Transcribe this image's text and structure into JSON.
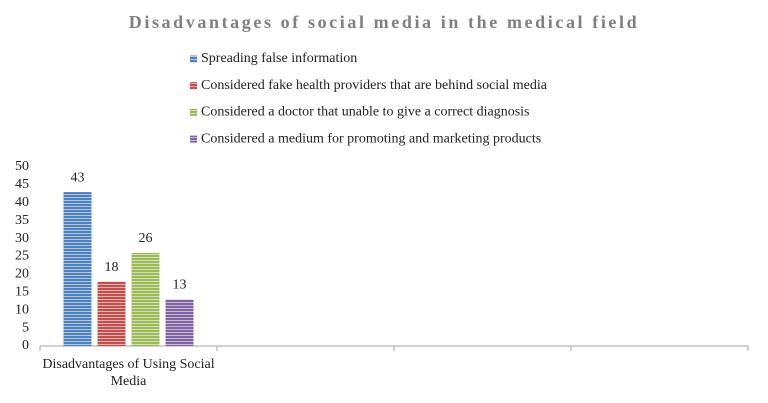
{
  "chart_data": {
    "type": "bar",
    "title": "Disadvantages of social media in the medical field",
    "categories": [
      "Disadvantages of Using Social Media",
      null,
      null,
      null
    ],
    "series": [
      {
        "name": "Spreading false information",
        "color": "#4f81bd",
        "values": [
          43,
          null,
          null,
          null
        ]
      },
      {
        "name": "Considered fake health providers that are behind social media",
        "color": "#c0504d",
        "values": [
          18,
          null,
          null,
          null
        ]
      },
      {
        "name": "Considered a doctor that unable to give a correct diagnosis",
        "color": "#9bbb59",
        "values": [
          26,
          null,
          null,
          null
        ]
      },
      {
        "name": "Considered a medium for promoting and marketing products",
        "color": "#8064a2",
        "values": [
          13,
          null,
          null,
          null
        ]
      }
    ],
    "ylim": [
      0,
      50
    ],
    "yticks": [
      0,
      5,
      10,
      15,
      20,
      25,
      30,
      35,
      40,
      45,
      50
    ],
    "grid": false,
    "legend": "top"
  }
}
